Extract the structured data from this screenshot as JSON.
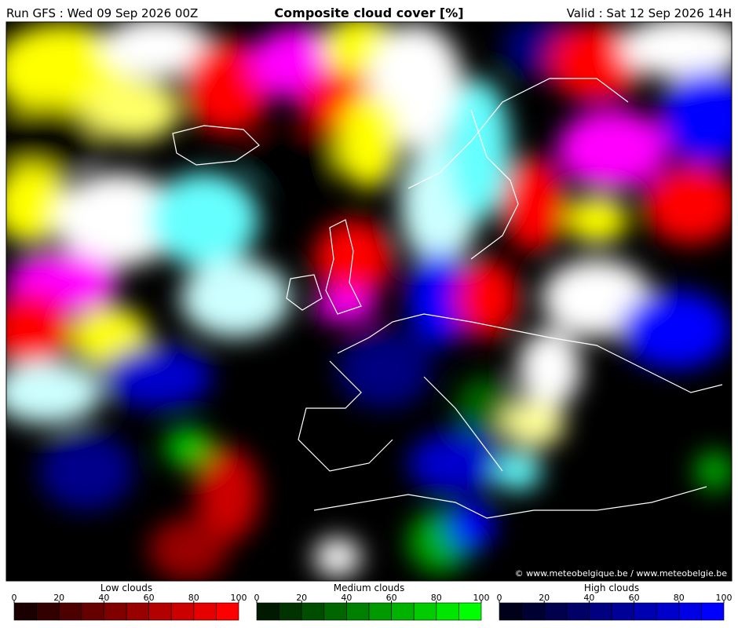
{
  "header": {
    "run": "Run GFS : Wed 09 Sep 2026 00Z",
    "title": "Composite cloud cover [%]",
    "valid": "Valid : Sat 12 Sep 2026 14H"
  },
  "copyright": "© www.meteobelgique.be / www.meteobelgie.be",
  "legends": [
    {
      "label": "Low clouds",
      "ticks": [
        0,
        20,
        40,
        60,
        80,
        100
      ],
      "colors": [
        "#1a0000",
        "#330000",
        "#4d0000",
        "#660000",
        "#800000",
        "#990000",
        "#b30000",
        "#cc0000",
        "#e60000",
        "#ff0000"
      ]
    },
    {
      "label": "Medium clouds",
      "ticks": [
        0,
        20,
        40,
        60,
        80,
        100
      ],
      "colors": [
        "#001a00",
        "#003300",
        "#004d00",
        "#006600",
        "#008000",
        "#009900",
        "#00b300",
        "#00cc00",
        "#00e600",
        "#00ff00"
      ]
    },
    {
      "label": "High clouds",
      "ticks": [
        0,
        20,
        40,
        60,
        80,
        100
      ],
      "colors": [
        "#00001a",
        "#000033",
        "#00004d",
        "#000066",
        "#000080",
        "#000099",
        "#0000b3",
        "#0000cc",
        "#0000e6",
        "#0000ff"
      ]
    }
  ]
}
